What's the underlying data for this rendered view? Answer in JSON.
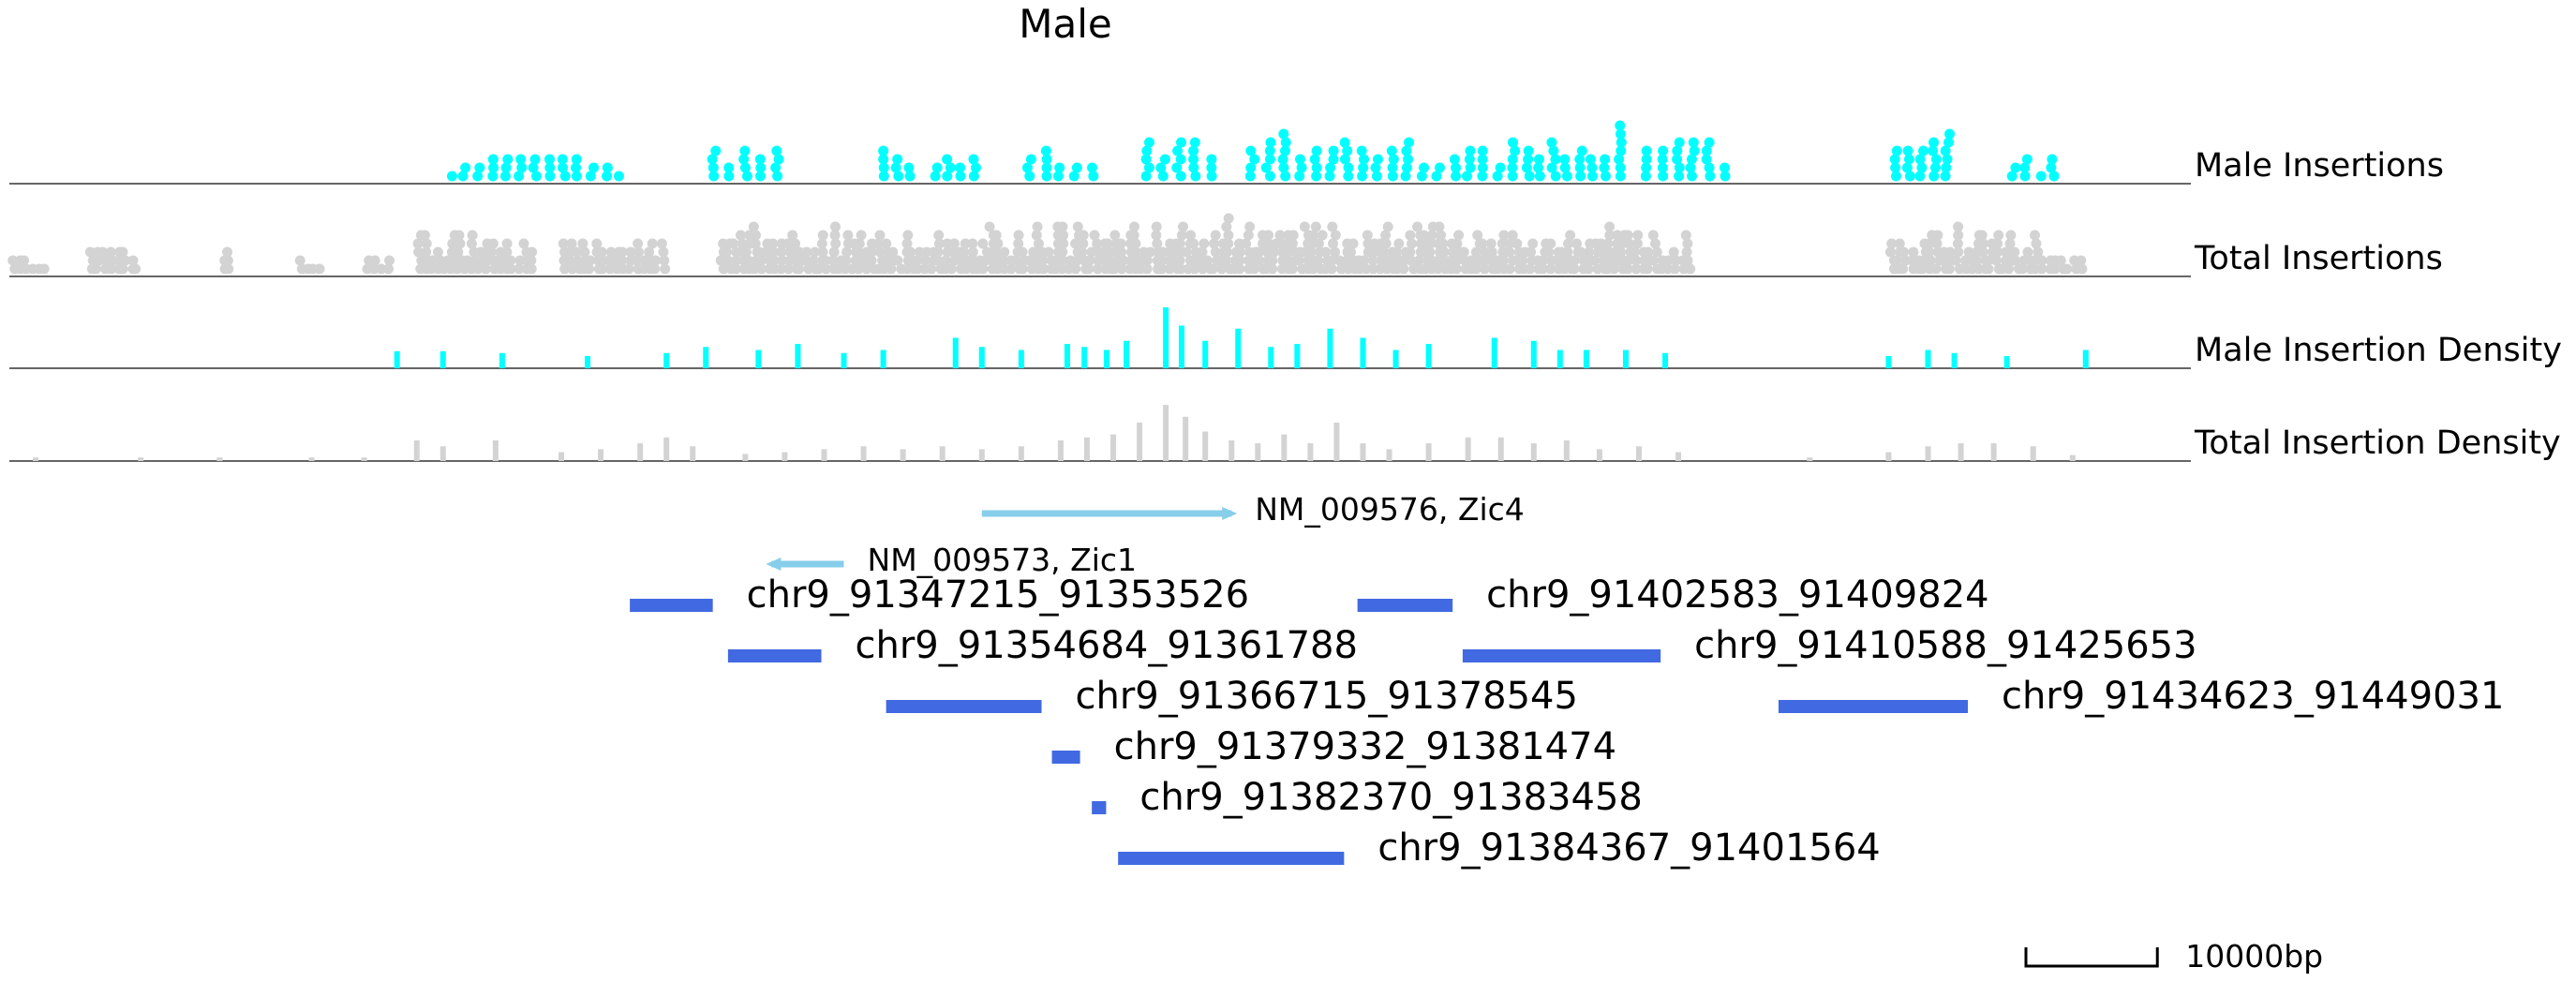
{
  "chart_data": {
    "type": "scatter",
    "title": "Male",
    "chromosome": "chr9",
    "region": [
      91300000,
      91466000
    ],
    "tracks": [
      {
        "name": "Male Insertions",
        "kind": "dots",
        "color": "#00ffff"
      },
      {
        "name": "Total Insertions",
        "kind": "dots",
        "color": "#d3d3d3"
      },
      {
        "name": "Male Insertion Density",
        "kind": "bars",
        "color": "#00ffff"
      },
      {
        "name": "Total Insertion Density",
        "kind": "bars",
        "color": "#d3d3d3"
      }
    ],
    "male_insertion_clusters": [
      {
        "start": 91333000,
        "end": 91347000,
        "height": 0.45
      },
      {
        "start": 91353000,
        "end": 91359000,
        "height": 0.7
      },
      {
        "start": 91366000,
        "end": 91369000,
        "height": 0.5
      },
      {
        "start": 91370000,
        "end": 91374000,
        "height": 0.35
      },
      {
        "start": 91377000,
        "end": 91383000,
        "height": 0.55
      },
      {
        "start": 91386000,
        "end": 91392000,
        "height": 0.85
      },
      {
        "start": 91394000,
        "end": 91400000,
        "height": 0.85
      },
      {
        "start": 91400000,
        "end": 91407000,
        "height": 0.8
      },
      {
        "start": 91407000,
        "end": 91414000,
        "height": 0.5
      },
      {
        "start": 91414000,
        "end": 91419000,
        "height": 0.7
      },
      {
        "start": 91419000,
        "end": 91423000,
        "height": 1.0
      },
      {
        "start": 91424000,
        "end": 91431000,
        "height": 0.7
      },
      {
        "start": 91443000,
        "end": 91448000,
        "height": 0.75
      },
      {
        "start": 91452000,
        "end": 91456000,
        "height": 0.45
      }
    ],
    "total_insertion_clusters": [
      {
        "start": 91300000,
        "end": 91303000,
        "height": 0.35
      },
      {
        "start": 91306000,
        "end": 91310000,
        "height": 0.45
      },
      {
        "start": 91316000,
        "end": 91317000,
        "height": 0.4
      },
      {
        "start": 91322000,
        "end": 91324000,
        "height": 0.3
      },
      {
        "start": 91327000,
        "end": 91329000,
        "height": 0.3
      },
      {
        "start": 91331000,
        "end": 91336000,
        "height": 0.75
      },
      {
        "start": 91336000,
        "end": 91340000,
        "height": 0.6
      },
      {
        "start": 91342000,
        "end": 91350000,
        "height": 0.6
      },
      {
        "start": 91354000,
        "end": 91363000,
        "height": 0.75
      },
      {
        "start": 91363000,
        "end": 91369000,
        "height": 0.7
      },
      {
        "start": 91369000,
        "end": 91380000,
        "height": 0.75
      },
      {
        "start": 91380000,
        "end": 91390000,
        "height": 0.8
      },
      {
        "start": 91390000,
        "end": 91400000,
        "height": 0.85
      },
      {
        "start": 91400000,
        "end": 91410000,
        "height": 0.8
      },
      {
        "start": 91410000,
        "end": 91418000,
        "height": 0.7
      },
      {
        "start": 91418000,
        "end": 91428000,
        "height": 0.75
      },
      {
        "start": 91443000,
        "end": 91448000,
        "height": 0.65
      },
      {
        "start": 91448000,
        "end": 91455000,
        "height": 0.75
      },
      {
        "start": 91455000,
        "end": 91458000,
        "height": 0.4
      }
    ],
    "male_density_bars": [
      {
        "pos": 91329500,
        "height": 0.28
      },
      {
        "pos": 91333000,
        "height": 0.28
      },
      {
        "pos": 91337500,
        "height": 0.25
      },
      {
        "pos": 91344000,
        "height": 0.2
      },
      {
        "pos": 91350000,
        "height": 0.25
      },
      {
        "pos": 91353000,
        "height": 0.35
      },
      {
        "pos": 91357000,
        "height": 0.3
      },
      {
        "pos": 91360000,
        "height": 0.4
      },
      {
        "pos": 91363500,
        "height": 0.25
      },
      {
        "pos": 91366500,
        "height": 0.3
      },
      {
        "pos": 91372000,
        "height": 0.5
      },
      {
        "pos": 91374000,
        "height": 0.35
      },
      {
        "pos": 91377000,
        "height": 0.3
      },
      {
        "pos": 91380500,
        "height": 0.4
      },
      {
        "pos": 91381800,
        "height": 0.35
      },
      {
        "pos": 91383500,
        "height": 0.3
      },
      {
        "pos": 91385000,
        "height": 0.45
      },
      {
        "pos": 91388000,
        "height": 1.0
      },
      {
        "pos": 91389200,
        "height": 0.7
      },
      {
        "pos": 91391000,
        "height": 0.45
      },
      {
        "pos": 91393500,
        "height": 0.65
      },
      {
        "pos": 91396000,
        "height": 0.35
      },
      {
        "pos": 91398000,
        "height": 0.4
      },
      {
        "pos": 91400500,
        "height": 0.65
      },
      {
        "pos": 91403000,
        "height": 0.5
      },
      {
        "pos": 91405500,
        "height": 0.3
      },
      {
        "pos": 91408000,
        "height": 0.4
      },
      {
        "pos": 91413000,
        "height": 0.5
      },
      {
        "pos": 91416000,
        "height": 0.45
      },
      {
        "pos": 91418000,
        "height": 0.3
      },
      {
        "pos": 91420000,
        "height": 0.3
      },
      {
        "pos": 91423000,
        "height": 0.3
      },
      {
        "pos": 91426000,
        "height": 0.25
      },
      {
        "pos": 91443000,
        "height": 0.2
      },
      {
        "pos": 91446000,
        "height": 0.3
      },
      {
        "pos": 91448000,
        "height": 0.25
      },
      {
        "pos": 91452000,
        "height": 0.2
      },
      {
        "pos": 91458000,
        "height": 0.3
      }
    ],
    "total_density_bars": [
      {
        "pos": 91302000,
        "height": 0.06
      },
      {
        "pos": 91310000,
        "height": 0.06
      },
      {
        "pos": 91316000,
        "height": 0.06
      },
      {
        "pos": 91323000,
        "height": 0.06
      },
      {
        "pos": 91327000,
        "height": 0.06
      },
      {
        "pos": 91331000,
        "height": 0.35
      },
      {
        "pos": 91333000,
        "height": 0.25
      },
      {
        "pos": 91337000,
        "height": 0.35
      },
      {
        "pos": 91342000,
        "height": 0.15
      },
      {
        "pos": 91345000,
        "height": 0.2
      },
      {
        "pos": 91348000,
        "height": 0.3
      },
      {
        "pos": 91350000,
        "height": 0.4
      },
      {
        "pos": 91352000,
        "height": 0.25
      },
      {
        "pos": 91356000,
        "height": 0.12
      },
      {
        "pos": 91359000,
        "height": 0.15
      },
      {
        "pos": 91362000,
        "height": 0.2
      },
      {
        "pos": 91365000,
        "height": 0.25
      },
      {
        "pos": 91368000,
        "height": 0.2
      },
      {
        "pos": 91371000,
        "height": 0.25
      },
      {
        "pos": 91374000,
        "height": 0.2
      },
      {
        "pos": 91377000,
        "height": 0.25
      },
      {
        "pos": 91380000,
        "height": 0.35
      },
      {
        "pos": 91382000,
        "height": 0.4
      },
      {
        "pos": 91384000,
        "height": 0.45
      },
      {
        "pos": 91386000,
        "height": 0.65
      },
      {
        "pos": 91388000,
        "height": 0.95
      },
      {
        "pos": 91389500,
        "height": 0.75
      },
      {
        "pos": 91391000,
        "height": 0.5
      },
      {
        "pos": 91393000,
        "height": 0.35
      },
      {
        "pos": 91395000,
        "height": 0.3
      },
      {
        "pos": 91397000,
        "height": 0.45
      },
      {
        "pos": 91399000,
        "height": 0.3
      },
      {
        "pos": 91401000,
        "height": 0.65
      },
      {
        "pos": 91403000,
        "height": 0.3
      },
      {
        "pos": 91405000,
        "height": 0.2
      },
      {
        "pos": 91408000,
        "height": 0.3
      },
      {
        "pos": 91411000,
        "height": 0.4
      },
      {
        "pos": 91413500,
        "height": 0.4
      },
      {
        "pos": 91416000,
        "height": 0.3
      },
      {
        "pos": 91418500,
        "height": 0.35
      },
      {
        "pos": 91421000,
        "height": 0.2
      },
      {
        "pos": 91424000,
        "height": 0.25
      },
      {
        "pos": 91427000,
        "height": 0.15
      },
      {
        "pos": 91437000,
        "height": 0.06
      },
      {
        "pos": 91443000,
        "height": 0.15
      },
      {
        "pos": 91446000,
        "height": 0.25
      },
      {
        "pos": 91448500,
        "height": 0.3
      },
      {
        "pos": 91451000,
        "height": 0.3
      },
      {
        "pos": 91454000,
        "height": 0.25
      },
      {
        "pos": 91457000,
        "height": 0.1
      }
    ],
    "genes": [
      {
        "label": "NM_009576, Zic4",
        "start": 91374000,
        "end": 91393000,
        "strand": "+",
        "color": "#87ceeb"
      },
      {
        "label": "NM_009573, Zic1",
        "start": 91358000,
        "end": 91363500,
        "strand": "-",
        "color": "#87ceeb"
      }
    ],
    "regions": [
      {
        "label": "chr9_91347215_91353526",
        "start": 91347215,
        "end": 91353526
      },
      {
        "label": "chr9_91354684_91361788",
        "start": 91354684,
        "end": 91361788
      },
      {
        "label": "chr9_91366715_91378545",
        "start": 91366715,
        "end": 91378545
      },
      {
        "label": "chr9_91379332_91381474",
        "start": 91379332,
        "end": 91381474
      },
      {
        "label": "chr9_91382370_91383458",
        "start": 91382370,
        "end": 91383458
      },
      {
        "label": "chr9_91384367_91401564",
        "start": 91384367,
        "end": 91401564
      },
      {
        "label": "chr9_91402583_91409824",
        "start": 91402583,
        "end": 91409824
      },
      {
        "label": "chr9_91410588_91425653",
        "start": 91410588,
        "end": 91425653
      },
      {
        "label": "chr9_91434623_91449031",
        "start": 91434623,
        "end": 91449031
      }
    ],
    "region_color": "#4169e1",
    "scale_bar": {
      "length_bp": 10000,
      "label": "10000bp"
    }
  }
}
